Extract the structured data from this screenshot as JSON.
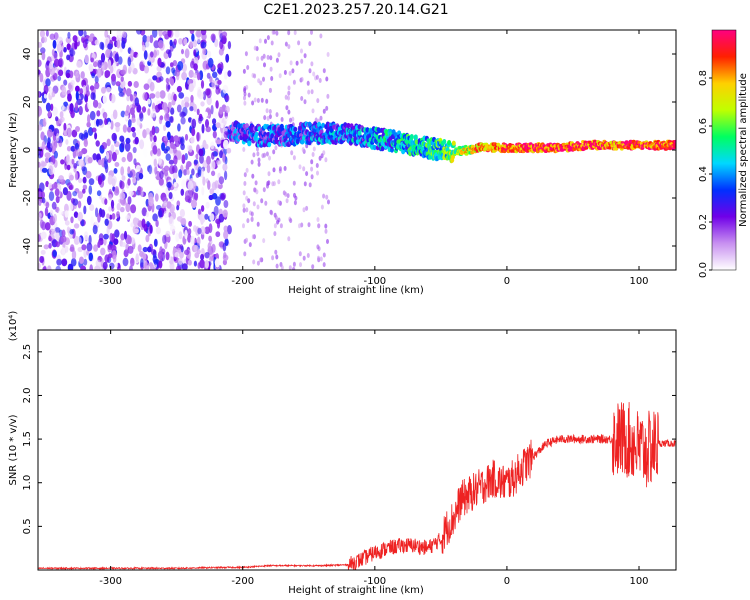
{
  "title": "C2E1.2023.257.20.14.G21",
  "chart_data": [
    {
      "type": "heatmap",
      "xlabel": "Height of straight line (km)",
      "ylabel": "Frequency (Hz)",
      "xlim": [
        -355,
        128
      ],
      "ylim": [
        -50,
        50
      ],
      "x_ticks": [
        -300,
        -200,
        -100,
        0,
        100
      ],
      "x_tick_labels": [
        "-300",
        "-200",
        "-100",
        "0",
        "100"
      ],
      "y_ticks": [
        -40,
        -20,
        0,
        20,
        40
      ],
      "y_tick_labels": [
        "-40",
        "-20",
        "0",
        "20",
        "40"
      ],
      "colorbar": {
        "label": "Normalized spectral amplitude",
        "range": [
          0,
          1
        ],
        "ticks": [
          0,
          0.2,
          0.4,
          0.6,
          0.8
        ],
        "tick_labels": [
          "0.0",
          "0.2",
          "0.4",
          "0.6",
          "0.8"
        ],
        "colors": [
          "#ffffff",
          "#c890f0",
          "#7000e8",
          "#0030ff",
          "#00d8ff",
          "#00ff60",
          "#c0ff00",
          "#ffd000",
          "#ff2000",
          "#ff0080"
        ]
      },
      "noise_region_x": [
        -355,
        -210
      ],
      "signal_track": {
        "x": [
          -210,
          -190,
          -170,
          -150,
          -130,
          -110,
          -90,
          -70,
          -50,
          -40,
          -30,
          -20,
          0,
          20,
          40,
          60,
          80,
          100,
          128
        ],
        "freq": [
          8,
          6,
          6,
          7,
          7,
          6,
          4,
          2,
          0,
          -1,
          0,
          1,
          1,
          1,
          1,
          2,
          2,
          2,
          2
        ],
        "amplitude": [
          0.25,
          0.3,
          0.3,
          0.3,
          0.35,
          0.35,
          0.4,
          0.45,
          0.5,
          0.6,
          0.7,
          0.8,
          0.85,
          0.9,
          0.9,
          0.9,
          0.85,
          0.9,
          0.9
        ]
      }
    },
    {
      "type": "line",
      "xlabel": "Height of straight line (km)",
      "ylabel": "SNR (10 * v/v)",
      "multiplier_label": "(x10⁴)",
      "xlim": [
        -355,
        128
      ],
      "ylim": [
        0,
        2.75
      ],
      "x_ticks": [
        -300,
        -200,
        -100,
        0,
        100
      ],
      "x_tick_labels": [
        "-300",
        "-200",
        "-100",
        "0",
        "100"
      ],
      "y_ticks": [
        0.5,
        1.0,
        1.5,
        2.0,
        2.5
      ],
      "y_tick_labels": [
        "0.5",
        "1.0",
        "1.5",
        "2.0",
        "2.5"
      ],
      "series": [
        {
          "color": "#ee2222",
          "x": [
            -355,
            -300,
            -250,
            -210,
            -200,
            -180,
            -160,
            -140,
            -120,
            -110,
            -100,
            -90,
            -80,
            -70,
            -60,
            -50,
            -45,
            -40,
            -35,
            -30,
            -25,
            -20,
            -15,
            -10,
            -5,
            0,
            5,
            10,
            20,
            30,
            40,
            50,
            60,
            70,
            80,
            90,
            95,
            100,
            105,
            110,
            115,
            120,
            128
          ],
          "y": [
            0.02,
            0.02,
            0.02,
            0.03,
            0.03,
            0.05,
            0.05,
            0.05,
            0.06,
            0.12,
            0.2,
            0.25,
            0.28,
            0.28,
            0.25,
            0.35,
            0.5,
            0.6,
            0.8,
            0.85,
            0.9,
            0.95,
            1.0,
            1.05,
            1.0,
            1.0,
            1.05,
            1.15,
            1.3,
            1.45,
            1.5,
            1.5,
            1.5,
            1.5,
            1.5,
            1.5,
            1.45,
            1.4,
            1.35,
            1.4,
            1.45,
            1.45,
            1.45
          ]
        }
      ]
    }
  ]
}
